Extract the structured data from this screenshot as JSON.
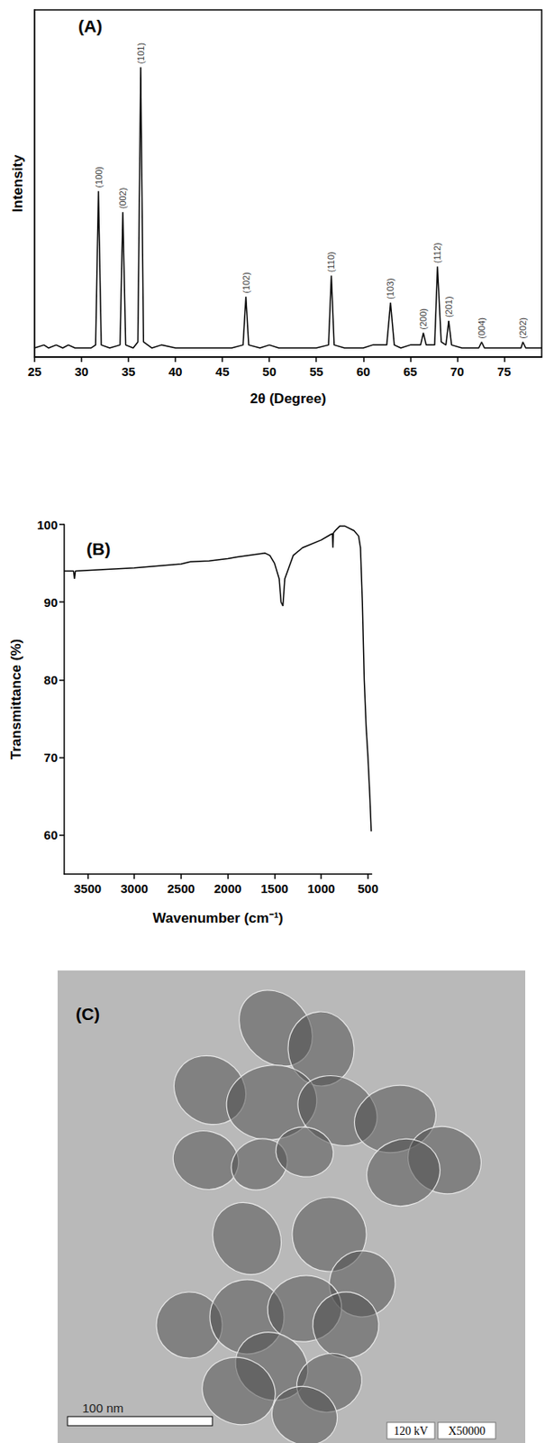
{
  "chart_data": [
    {
      "type": "line",
      "title": "(A)",
      "x_label": "2θ (Degree)",
      "y_label": "Intensity",
      "x": [
        25.0,
        26.0,
        26.5,
        27.3,
        28.0,
        28.6,
        29.3,
        30.0,
        31.0,
        31.5,
        31.8,
        32.1,
        33.0,
        34.1,
        34.4,
        34.7,
        35.5,
        36.0,
        36.3,
        36.6,
        37.5,
        38.5,
        40.0,
        42.0,
        44.0,
        46.0,
        47.2,
        47.5,
        47.8,
        49.0,
        50.0,
        51.0,
        53.0,
        55.0,
        56.3,
        56.6,
        56.9,
        58.0,
        60.0,
        61.0,
        62.5,
        62.9,
        63.3,
        64.0,
        65.0,
        66.1,
        66.4,
        66.7,
        67.6,
        67.9,
        68.3,
        68.8,
        69.1,
        69.4,
        70.5,
        72.3,
        72.6,
        72.9,
        74.0,
        76.0,
        76.8,
        77.0,
        77.3,
        78.0,
        79.0
      ],
      "values": [
        3,
        4,
        3,
        4,
        3,
        4,
        3,
        3,
        3,
        4,
        55,
        4,
        3,
        4,
        48,
        4,
        3,
        5,
        96,
        5,
        3,
        4,
        3,
        3,
        3,
        3,
        4,
        20,
        4,
        3,
        4,
        3,
        3,
        3,
        4,
        27,
        4,
        3,
        3,
        4,
        4,
        18,
        4,
        3,
        4,
        4,
        8,
        4,
        4,
        30,
        5,
        4,
        12,
        4,
        3,
        3,
        5,
        3,
        3,
        3,
        3,
        5,
        3,
        3,
        3
      ],
      "color": "#000000",
      "xlim": [
        25,
        79
      ],
      "xticks": [
        25,
        30,
        35,
        40,
        45,
        50,
        55,
        60,
        65,
        70,
        75
      ],
      "ylim": [
        0,
        115
      ],
      "tick_labels": "x",
      "grid": false,
      "annotations": [
        {
          "text": "(100)",
          "x": 31.8,
          "y": 55
        },
        {
          "text": "(002)",
          "x": 34.4,
          "y": 48
        },
        {
          "text": "(101)",
          "x": 36.3,
          "y": 96
        },
        {
          "text": "(102)",
          "x": 47.5,
          "y": 20
        },
        {
          "text": "(110)",
          "x": 56.6,
          "y": 27
        },
        {
          "text": "(103)",
          "x": 62.9,
          "y": 18
        },
        {
          "text": "(200)",
          "x": 66.4,
          "y": 8
        },
        {
          "text": "(112)",
          "x": 67.9,
          "y": 30
        },
        {
          "text": "(201)",
          "x": 69.1,
          "y": 12
        },
        {
          "text": "(004)",
          "x": 72.6,
          "y": 5
        },
        {
          "text": "(202)",
          "x": 77.0,
          "y": 5
        }
      ]
    },
    {
      "type": "line",
      "title": "(B)",
      "x_label": "Wavenumber (cm⁻¹)",
      "y_label": "Transmittance (%)",
      "x": [
        3750,
        3650,
        3640,
        3630,
        3000,
        2500,
        2400,
        2200,
        2000,
        1900,
        1600,
        1550,
        1500,
        1450,
        1430,
        1410,
        1390,
        1300,
        1200,
        1000,
        900,
        880,
        875,
        870,
        850,
        800,
        750,
        650,
        600,
        580,
        560,
        540,
        520,
        500,
        480,
        465
      ],
      "values": [
        94,
        94,
        93,
        94,
        94.4,
        94.9,
        95.2,
        95.3,
        95.6,
        95.8,
        96.3,
        96,
        95,
        93,
        90,
        89.5,
        93,
        96,
        97,
        98,
        98.7,
        98.8,
        97,
        98.9,
        99.2,
        99.8,
        99.8,
        99.2,
        98.5,
        97,
        90,
        80,
        74,
        70,
        65,
        60.5
      ],
      "color": "#000000",
      "xlim": [
        3750,
        460
      ],
      "xticks": [
        3500,
        3000,
        2500,
        2000,
        1500,
        1000,
        500
      ],
      "ylim": [
        55,
        100
      ],
      "yticks": [
        60,
        70,
        80,
        90,
        100
      ],
      "grid": false
    }
  ],
  "image": {
    "label": "(C)",
    "scale_bar": "100 nm",
    "info": [
      "120 kV",
      "X50000"
    ]
  }
}
